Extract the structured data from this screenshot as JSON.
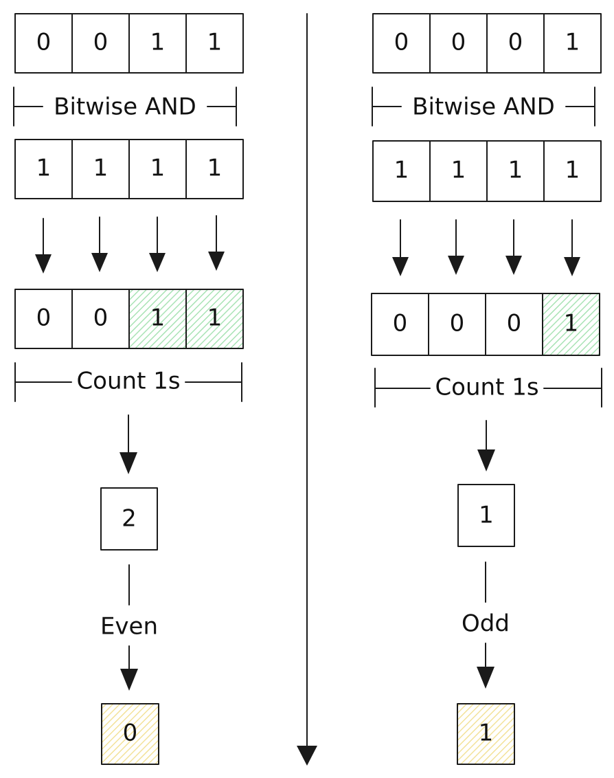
{
  "colors": {
    "ink": "#1a1a1a",
    "ones_highlight": "#a9e3b5",
    "result_highlight": "#f3e29a",
    "background": "#ffffff"
  },
  "left": {
    "input_a": [
      "0",
      "0",
      "1",
      "1"
    ],
    "operation_label": "Bitwise AND",
    "input_b": [
      "1",
      "1",
      "1",
      "1"
    ],
    "and_result": [
      "0",
      "0",
      "1",
      "1"
    ],
    "highlighted_ones": [
      false,
      false,
      true,
      true
    ],
    "count_label": "Count 1s",
    "count_value": "2",
    "parity_label": "Even",
    "final_value": "0"
  },
  "right": {
    "input_a": [
      "0",
      "0",
      "0",
      "1"
    ],
    "operation_label": "Bitwise AND",
    "input_b": [
      "1",
      "1",
      "1",
      "1"
    ],
    "and_result": [
      "0",
      "0",
      "0",
      "1"
    ],
    "highlighted_ones": [
      false,
      false,
      false,
      true
    ],
    "count_label": "Count 1s",
    "count_value": "1",
    "parity_label": "Odd",
    "final_value": "1"
  }
}
